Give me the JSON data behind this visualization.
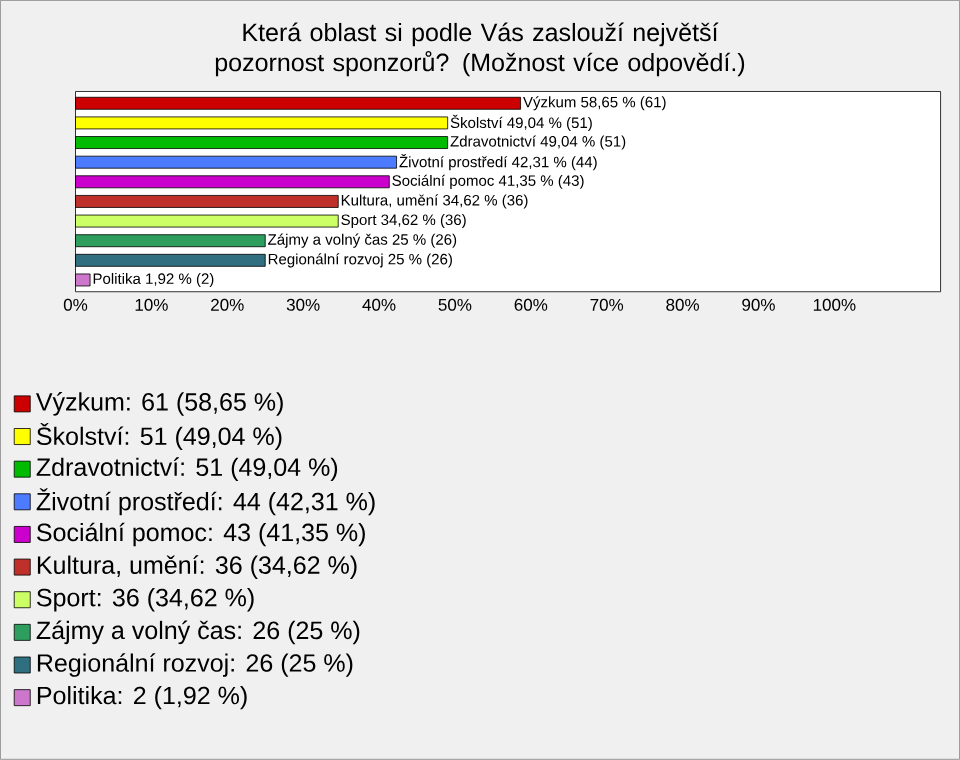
{
  "chart_data": {
    "type": "bar",
    "orientation": "horizontal",
    "title": "Která oblast si podle Vás zaslouží největší pozornost sponzorů? (Možnost více odpovědí.)",
    "categories": [
      null,
      null,
      null,
      null,
      null,
      null,
      null,
      null,
      null,
      null
    ],
    "values": [
      58.65,
      49.04,
      49.04,
      42.31,
      41.35,
      34.62,
      34.62,
      25,
      25,
      1.92
    ],
    "colors": [
      "#cc0000",
      "#ffff00",
      "#00bb00",
      "#4d7bff",
      "#cc00cc",
      "#c0302a",
      "#ccff66",
      "#2e9e5e",
      "#2f6f7f",
      "#cc77cc"
    ],
    "value_labels": [
      "Výzkum 58,65 % (61)",
      "Školství 49,04 % (51)",
      "Zdravotnictví 49,04 % (51)",
      "Životní prostředí 42,31 % (44)",
      "Sociální pomoc 41,35 % (43)",
      "Kultura, umění 34,62 % (36)",
      "Sport 34,62 % (36)",
      "Zájmy a volný čas 25 % (26)",
      "Regionální rozvoj 25 % (26)",
      "Politika 1,92 % (2)"
    ],
    "annotations": [
      "Výzkum: 61 (58,65 %)",
      "Školství: 51 (49,04 %)",
      "Zdravotnictví: 51 (49,04 %)",
      "Životní prostředí: 44 (42,31 %)",
      "Sociální pomoc: 43 (41,35 %)",
      "Kultura, umění: 36 (34,62 %)",
      "Sport: 36 (34,62 %)",
      "Zájmy a volný čas: 26 (25 %)",
      "Regionální rozvoj: 26 (25 %)",
      "Politika: 2 (1,92 %)"
    ],
    "xlim": [
      0,
      114
    ],
    "xticks": [
      {
        "value": 0,
        "label": "0%"
      },
      {
        "value": 10,
        "label": "10%"
      },
      {
        "value": 20,
        "label": "20%"
      },
      {
        "value": 30,
        "label": "30%"
      },
      {
        "value": 40,
        "label": "40%"
      },
      {
        "value": 50,
        "label": "50%"
      },
      {
        "value": 60,
        "label": "60%"
      },
      {
        "value": 70,
        "label": "70%"
      },
      {
        "value": 80,
        "label": "80%"
      },
      {
        "value": 90,
        "label": "90%"
      },
      {
        "value": 100,
        "label": "100%"
      }
    ],
    "tick_labels": "x"
  }
}
